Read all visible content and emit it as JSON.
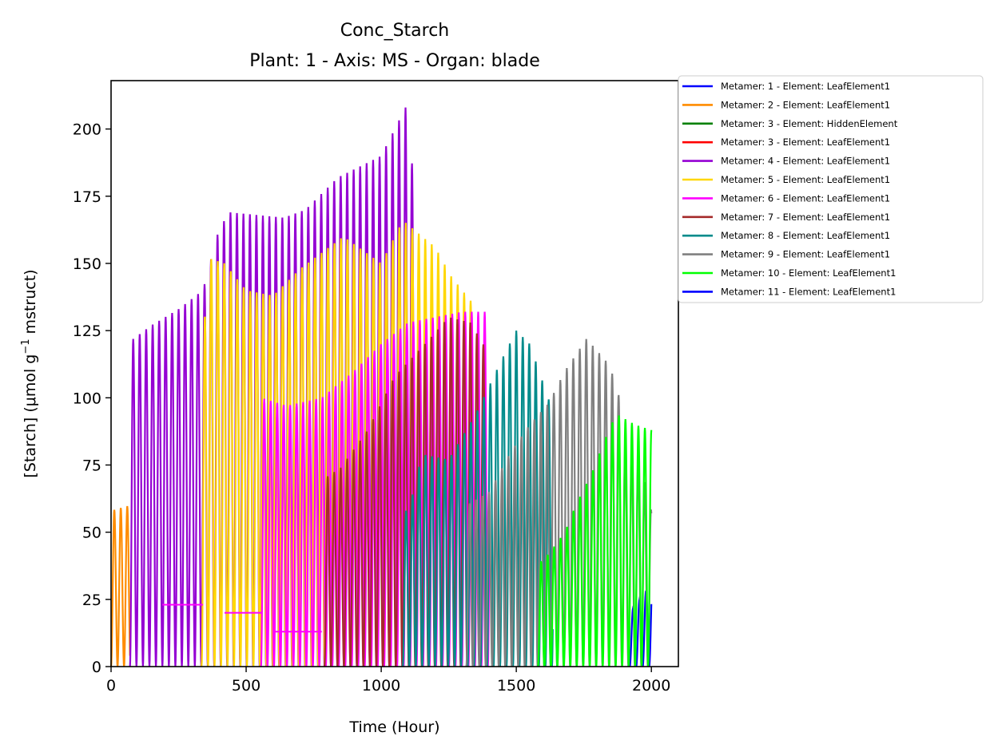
{
  "chart_data": {
    "type": "line",
    "title": "Conc_Starch",
    "subtitle": "Plant: 1 - Axis: MS - Organ: blade",
    "xlabel": "Time (Hour)",
    "ylabel_main": "[Starch] (μmol g",
    "ylabel_sup": "−1",
    "ylabel_tail": " mstruct)",
    "xlim": [
      0,
      2100
    ],
    "ylim": [
      0,
      218
    ],
    "xticks": [
      0,
      500,
      1000,
      1500,
      2000
    ],
    "yticks": [
      0,
      25,
      50,
      75,
      100,
      125,
      150,
      175,
      200
    ],
    "grid": false,
    "legend_position": "outside-right",
    "series": [
      {
        "name": "Metamer: 1 - Element: LeafElement1",
        "color": "#0000ff",
        "start": 1920,
        "end": 2000,
        "peaks": [
          [
            1920,
            20
          ],
          [
            2000,
            31
          ]
        ]
      },
      {
        "name": "Metamer: 2 - Element: LeafElement1",
        "color": "#ff8c00",
        "start": 0,
        "end": 70,
        "peaks": [
          [
            0,
            58
          ],
          [
            70,
            60
          ]
        ]
      },
      {
        "name": "Metamer: 3 - Element: HiddenElement",
        "color": "#008000",
        "start": 0,
        "end": 0,
        "peaks": []
      },
      {
        "name": "Metamer: 3 - Element: LeafElement1",
        "color": "#ff0000",
        "start": 0,
        "end": 0,
        "peaks": []
      },
      {
        "name": "Metamer: 4 - Element: LeafElement1",
        "color": "#9400d3",
        "start": 70,
        "end": 1120,
        "peaks": [
          [
            70,
            121
          ],
          [
            150,
            127
          ],
          [
            250,
            133
          ],
          [
            340,
            140
          ],
          [
            400,
            163
          ],
          [
            440,
            169
          ],
          [
            540,
            168
          ],
          [
            640,
            167
          ],
          [
            720,
            170
          ],
          [
            840,
            182
          ],
          [
            1000,
            190
          ],
          [
            1090,
            208
          ],
          [
            1120,
            182
          ]
        ]
      },
      {
        "name": "Metamer: 5 - Element: LeafElement1",
        "color": "#ffd700",
        "start": 335,
        "end": 1340,
        "peaks": [
          [
            335,
            110
          ],
          [
            360,
            152
          ],
          [
            420,
            150
          ],
          [
            500,
            140
          ],
          [
            600,
            138
          ],
          [
            700,
            148
          ],
          [
            860,
            160
          ],
          [
            1000,
            150
          ],
          [
            1080,
            166
          ],
          [
            1200,
            156
          ],
          [
            1260,
            145
          ],
          [
            1340,
            135
          ]
        ]
      },
      {
        "name": "Metamer: 6 - Element: LeafElement1",
        "color": "#ff00ff",
        "start": 555,
        "end": 1400,
        "peaks": [
          [
            555,
            100
          ],
          [
            650,
            97
          ],
          [
            780,
            100
          ],
          [
            900,
            110
          ],
          [
            1000,
            120
          ],
          [
            1100,
            128
          ],
          [
            1200,
            130
          ],
          [
            1300,
            132
          ],
          [
            1400,
            132
          ]
        ]
      },
      {
        "name": "Metamer: 7 - Element: LeafElement1",
        "color": "#a52a2a",
        "start": 790,
        "end": 1395,
        "peaks": [
          [
            790,
            70
          ],
          [
            850,
            74
          ],
          [
            950,
            88
          ],
          [
            1050,
            108
          ],
          [
            1180,
            122
          ],
          [
            1250,
            130
          ],
          [
            1330,
            128
          ],
          [
            1395,
            117
          ]
        ]
      },
      {
        "name": "Metamer: 8 - Element: LeafElement1",
        "color": "#008b8b",
        "start": 1080,
        "end": 1635,
        "peaks": [
          [
            1080,
            55
          ],
          [
            1120,
            65
          ],
          [
            1150,
            79
          ],
          [
            1250,
            77
          ],
          [
            1350,
            94
          ],
          [
            1450,
            115
          ],
          [
            1500,
            125
          ],
          [
            1550,
            120
          ],
          [
            1635,
            95
          ]
        ]
      },
      {
        "name": "Metamer: 9 - Element: LeafElement1",
        "color": "#808080",
        "start": 1315,
        "end": 2000,
        "peaks": [
          [
            1315,
            60
          ],
          [
            1400,
            65
          ],
          [
            1480,
            80
          ],
          [
            1550,
            90
          ],
          [
            1620,
            98
          ],
          [
            1680,
            110
          ],
          [
            1760,
            122
          ],
          [
            1830,
            114
          ],
          [
            1875,
            105
          ],
          [
            1900,
            80
          ],
          [
            1960,
            75
          ],
          [
            2000,
            58
          ]
        ]
      },
      {
        "name": "Metamer: 10 - Element: LeafElement1",
        "color": "#00ff00",
        "start": 1580,
        "end": 2000,
        "peaks": [
          [
            1580,
            38
          ],
          [
            1620,
            42
          ],
          [
            1680,
            50
          ],
          [
            1720,
            60
          ],
          [
            1780,
            72
          ],
          [
            1830,
            85
          ],
          [
            1870,
            94
          ],
          [
            1940,
            90
          ],
          [
            2000,
            88
          ]
        ]
      },
      {
        "name": "Metamer: 11 - Element: LeafElement1",
        "color": "#0000ff",
        "start": 0,
        "end": 0,
        "peaks": []
      }
    ],
    "baselines": [
      {
        "color": "#ff00ff",
        "x0": 190,
        "x1": 340,
        "value": 23
      },
      {
        "color": "#ff00ff",
        "x0": 420,
        "x1": 560,
        "value": 20
      },
      {
        "color": "#ff00ff",
        "x0": 600,
        "x1": 780,
        "value": 13
      }
    ]
  }
}
